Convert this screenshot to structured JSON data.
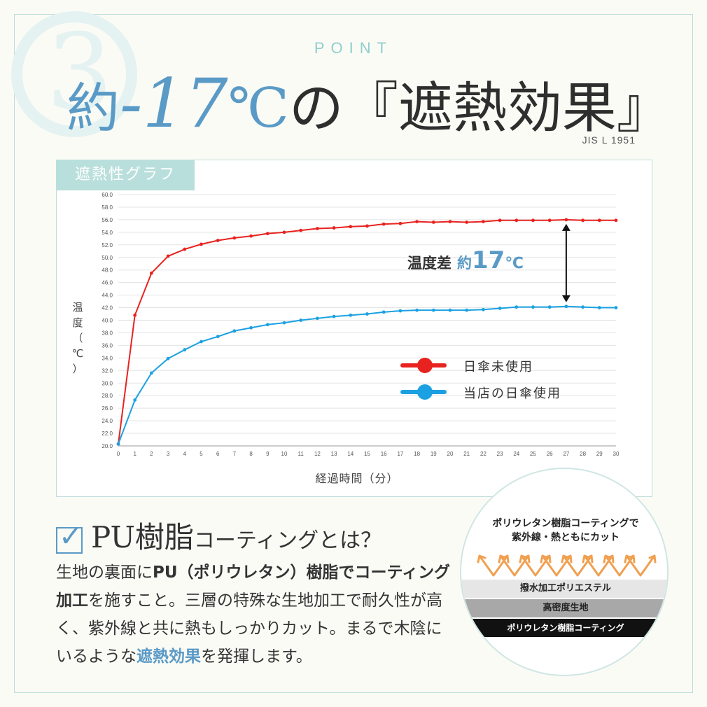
{
  "header": {
    "point_label": "POINT",
    "deco_number": "3",
    "headline_prefix": "約",
    "headline_value": "-17",
    "headline_unit": "℃",
    "headline_suffix": "の『遮熱効果』",
    "standard": "JIS L 1951"
  },
  "chart_section": {
    "tab_label": "遮熱性グラフ",
    "difference_label": "温度差",
    "difference_prefix": "約",
    "difference_value": "17",
    "difference_unit": "℃"
  },
  "chart_data": {
    "type": "line",
    "xlabel": "経過時間（分）",
    "ylabel": "温度（℃）",
    "x": [
      0,
      1,
      2,
      3,
      4,
      5,
      6,
      7,
      8,
      9,
      10,
      11,
      12,
      13,
      14,
      15,
      16,
      17,
      18,
      19,
      20,
      21,
      22,
      23,
      24,
      25,
      26,
      27,
      28,
      29,
      30
    ],
    "ylim": [
      20.0,
      60.0
    ],
    "yticks": [
      "20.0",
      "22.0",
      "24.0",
      "26.0",
      "28.0",
      "30.0",
      "32.0",
      "34.0",
      "36.0",
      "38.0",
      "40.0",
      "42.0",
      "44.0",
      "46.0",
      "48.0",
      "50.0",
      "52.0",
      "54.0",
      "56.0",
      "58.0",
      "60.0"
    ],
    "grid": true,
    "legend_position": "right",
    "series": [
      {
        "name": "日傘未使用",
        "color": "#e8231f",
        "values": [
          20.3,
          40.8,
          47.5,
          50.2,
          51.3,
          52.1,
          52.7,
          53.1,
          53.4,
          53.8,
          54.0,
          54.3,
          54.6,
          54.7,
          54.9,
          55.0,
          55.3,
          55.4,
          55.7,
          55.6,
          55.7,
          55.6,
          55.7,
          55.9,
          55.9,
          55.9,
          55.9,
          56.0,
          55.9,
          55.9,
          55.9
        ]
      },
      {
        "name": "当店の日傘使用",
        "color": "#1ba1e2",
        "values": [
          20.3,
          27.3,
          31.6,
          33.9,
          35.3,
          36.6,
          37.4,
          38.3,
          38.8,
          39.3,
          39.6,
          40.0,
          40.3,
          40.6,
          40.8,
          41.0,
          41.3,
          41.5,
          41.6,
          41.6,
          41.6,
          41.6,
          41.7,
          41.9,
          42.1,
          42.1,
          42.1,
          42.2,
          42.1,
          42.0,
          42.0
        ]
      }
    ]
  },
  "pu_section": {
    "title_main": "PU樹脂",
    "title_sub": "コーティングとは？",
    "body_1": "生地の裏面に",
    "body_2": "PU（ポリウレタン）樹脂でコーティング加工",
    "body_3": "を施すこと。三層の特殊な生地加工で耐久性が高く、紫外線と共に熱もしっかりカット。まるで木陰にいるような",
    "body_4": "遮熱効果",
    "body_5": "を発揮します。"
  },
  "layer_figure": {
    "title_line1": "ポリウレタン樹脂コーティングで",
    "title_line2": "紫外線・熱ともにカット",
    "layer1": "撥水加工ポリエステル",
    "layer2": "高密度生地",
    "layer3": "ポリウレタン樹脂コーティング",
    "arrow_color": "#f0a050"
  }
}
